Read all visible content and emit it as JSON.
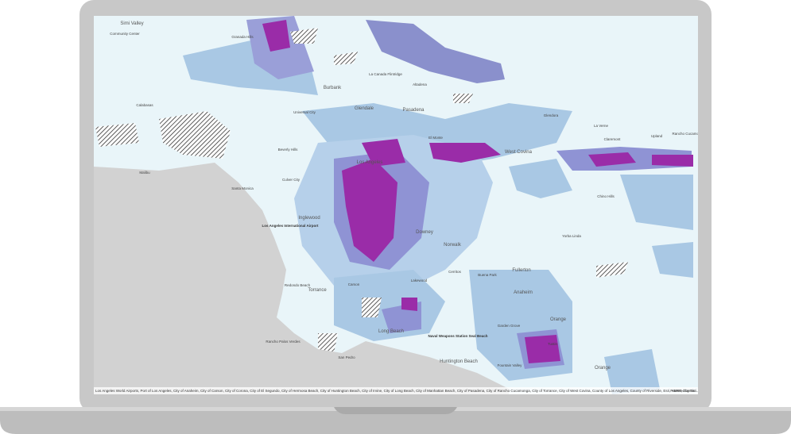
{
  "map": {
    "labels": [
      "Simi Valley",
      "Community Center",
      "Granada Hills",
      "Burbank",
      "La Canada Flintridge",
      "Altadena",
      "Glendale",
      "Pasadena",
      "Calabasas",
      "Universal City",
      "Glendora",
      "La Verne",
      "Upland",
      "Rancho Cucamonga",
      "Claremont",
      "West Covina",
      "Malibu",
      "Beverly Hills",
      "Santa Monica",
      "Culver City",
      "Los Angeles",
      "El Monte",
      "Chino Hills",
      "Inglewood",
      "Los Angeles International Airport",
      "Downey",
      "Norwalk",
      "Yorba Linda",
      "Fullerton",
      "Cerritos",
      "Lakewood",
      "Buena Park",
      "Anaheim",
      "Redondo Beach",
      "Torrance",
      "Carson",
      "Orange",
      "Garden Grove",
      "Tustin",
      "Rancho Palos Verdes",
      "Long Beach",
      "San Pedro",
      "Naval Weapons Station Seal Beach",
      "Huntington Beach",
      "Fountain Valley",
      "Orange"
    ],
    "attribution": "Los Angeles World Airports, Port of Los Angeles, City of Anaheim, City of Carson, City of Corona, City of El Segundo, City of Hermosa Beach, City of Huntington Beach, City of Irvine, City of Long Beach, City of Manhattan Beach, City of Pasadena, City of Rancho Cucamonga, City of Torrance, City of West Covina, County of Los Angeles, County of Riverside, Esri, HERE, Garmin...",
    "powered_by": "Powered by Esri"
  }
}
